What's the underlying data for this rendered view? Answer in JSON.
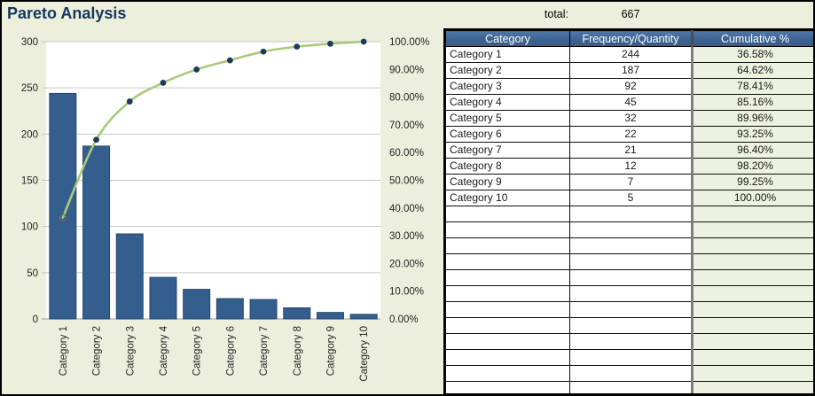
{
  "title": "Pareto Analysis",
  "summary": {
    "label": "total:",
    "value": "667"
  },
  "colors": {
    "page_bg": "#EBEFDB",
    "title_text": "#16365C",
    "bar_fill": "#335E8E",
    "bar_stroke": "#27496D",
    "line": "#ABC97A",
    "marker_fill": "#20395C",
    "open_marker_stroke": "#6E6E62",
    "gridline": "#C6C6C6",
    "axis_line": "#9C9C9C",
    "axis_text": "#262626",
    "plot_bg": "#FFFFFF",
    "table_header_bg": "#3A618F",
    "table_header_text": "#FFFFFF",
    "cumulative_col_bg": "#EDF1DF",
    "thick_divider": "#7F7F7F"
  },
  "table": {
    "headers": [
      "Category",
      "Frequency/Quantity",
      "Cumulative %"
    ],
    "rows": [
      [
        "Category 1",
        "244",
        "36.58%"
      ],
      [
        "Category 2",
        "187",
        "64.62%"
      ],
      [
        "Category 3",
        "92",
        "78.41%"
      ],
      [
        "Category 4",
        "45",
        "85.16%"
      ],
      [
        "Category 5",
        "32",
        "89.96%"
      ],
      [
        "Category 6",
        "22",
        "93.25%"
      ],
      [
        "Category 7",
        "21",
        "96.40%"
      ],
      [
        "Category 8",
        "12",
        "98.20%"
      ],
      [
        "Category 9",
        "7",
        "99.25%"
      ],
      [
        "Category 10",
        "5",
        "100.00%"
      ]
    ],
    "empty_rows": 12
  },
  "chart_data": {
    "type": "combo",
    "title": "",
    "categories": [
      "Category 1",
      "Category 2",
      "Category 3",
      "Category 4",
      "Category 5",
      "Category 6",
      "Category 7",
      "Category 8",
      "Category 9",
      "Category 10"
    ],
    "series": [
      {
        "name": "Frequency/Quantity",
        "type": "bar",
        "axis": "left",
        "values": [
          244,
          187,
          92,
          45,
          32,
          22,
          21,
          12,
          7,
          5
        ]
      },
      {
        "name": "Cumulative %",
        "type": "line",
        "axis": "right",
        "values": [
          36.58,
          64.62,
          78.41,
          85.16,
          89.96,
          93.25,
          96.4,
          98.2,
          99.25,
          100.0
        ]
      }
    ],
    "y_left": {
      "min": 0,
      "max": 300,
      "step": 50,
      "tick_labels": [
        "0",
        "50",
        "100",
        "150",
        "200",
        "250",
        "300"
      ]
    },
    "y_right": {
      "min": 0,
      "max": 100,
      "step": 10,
      "format": "0.00%",
      "tick_labels": [
        "0.00%",
        "10.00%",
        "20.00%",
        "30.00%",
        "40.00%",
        "50.00%",
        "60.00%",
        "70.00%",
        "80.00%",
        "90.00%",
        "100.00%"
      ]
    },
    "grid": true,
    "legend": "none",
    "first_line_marker_style": "open"
  }
}
